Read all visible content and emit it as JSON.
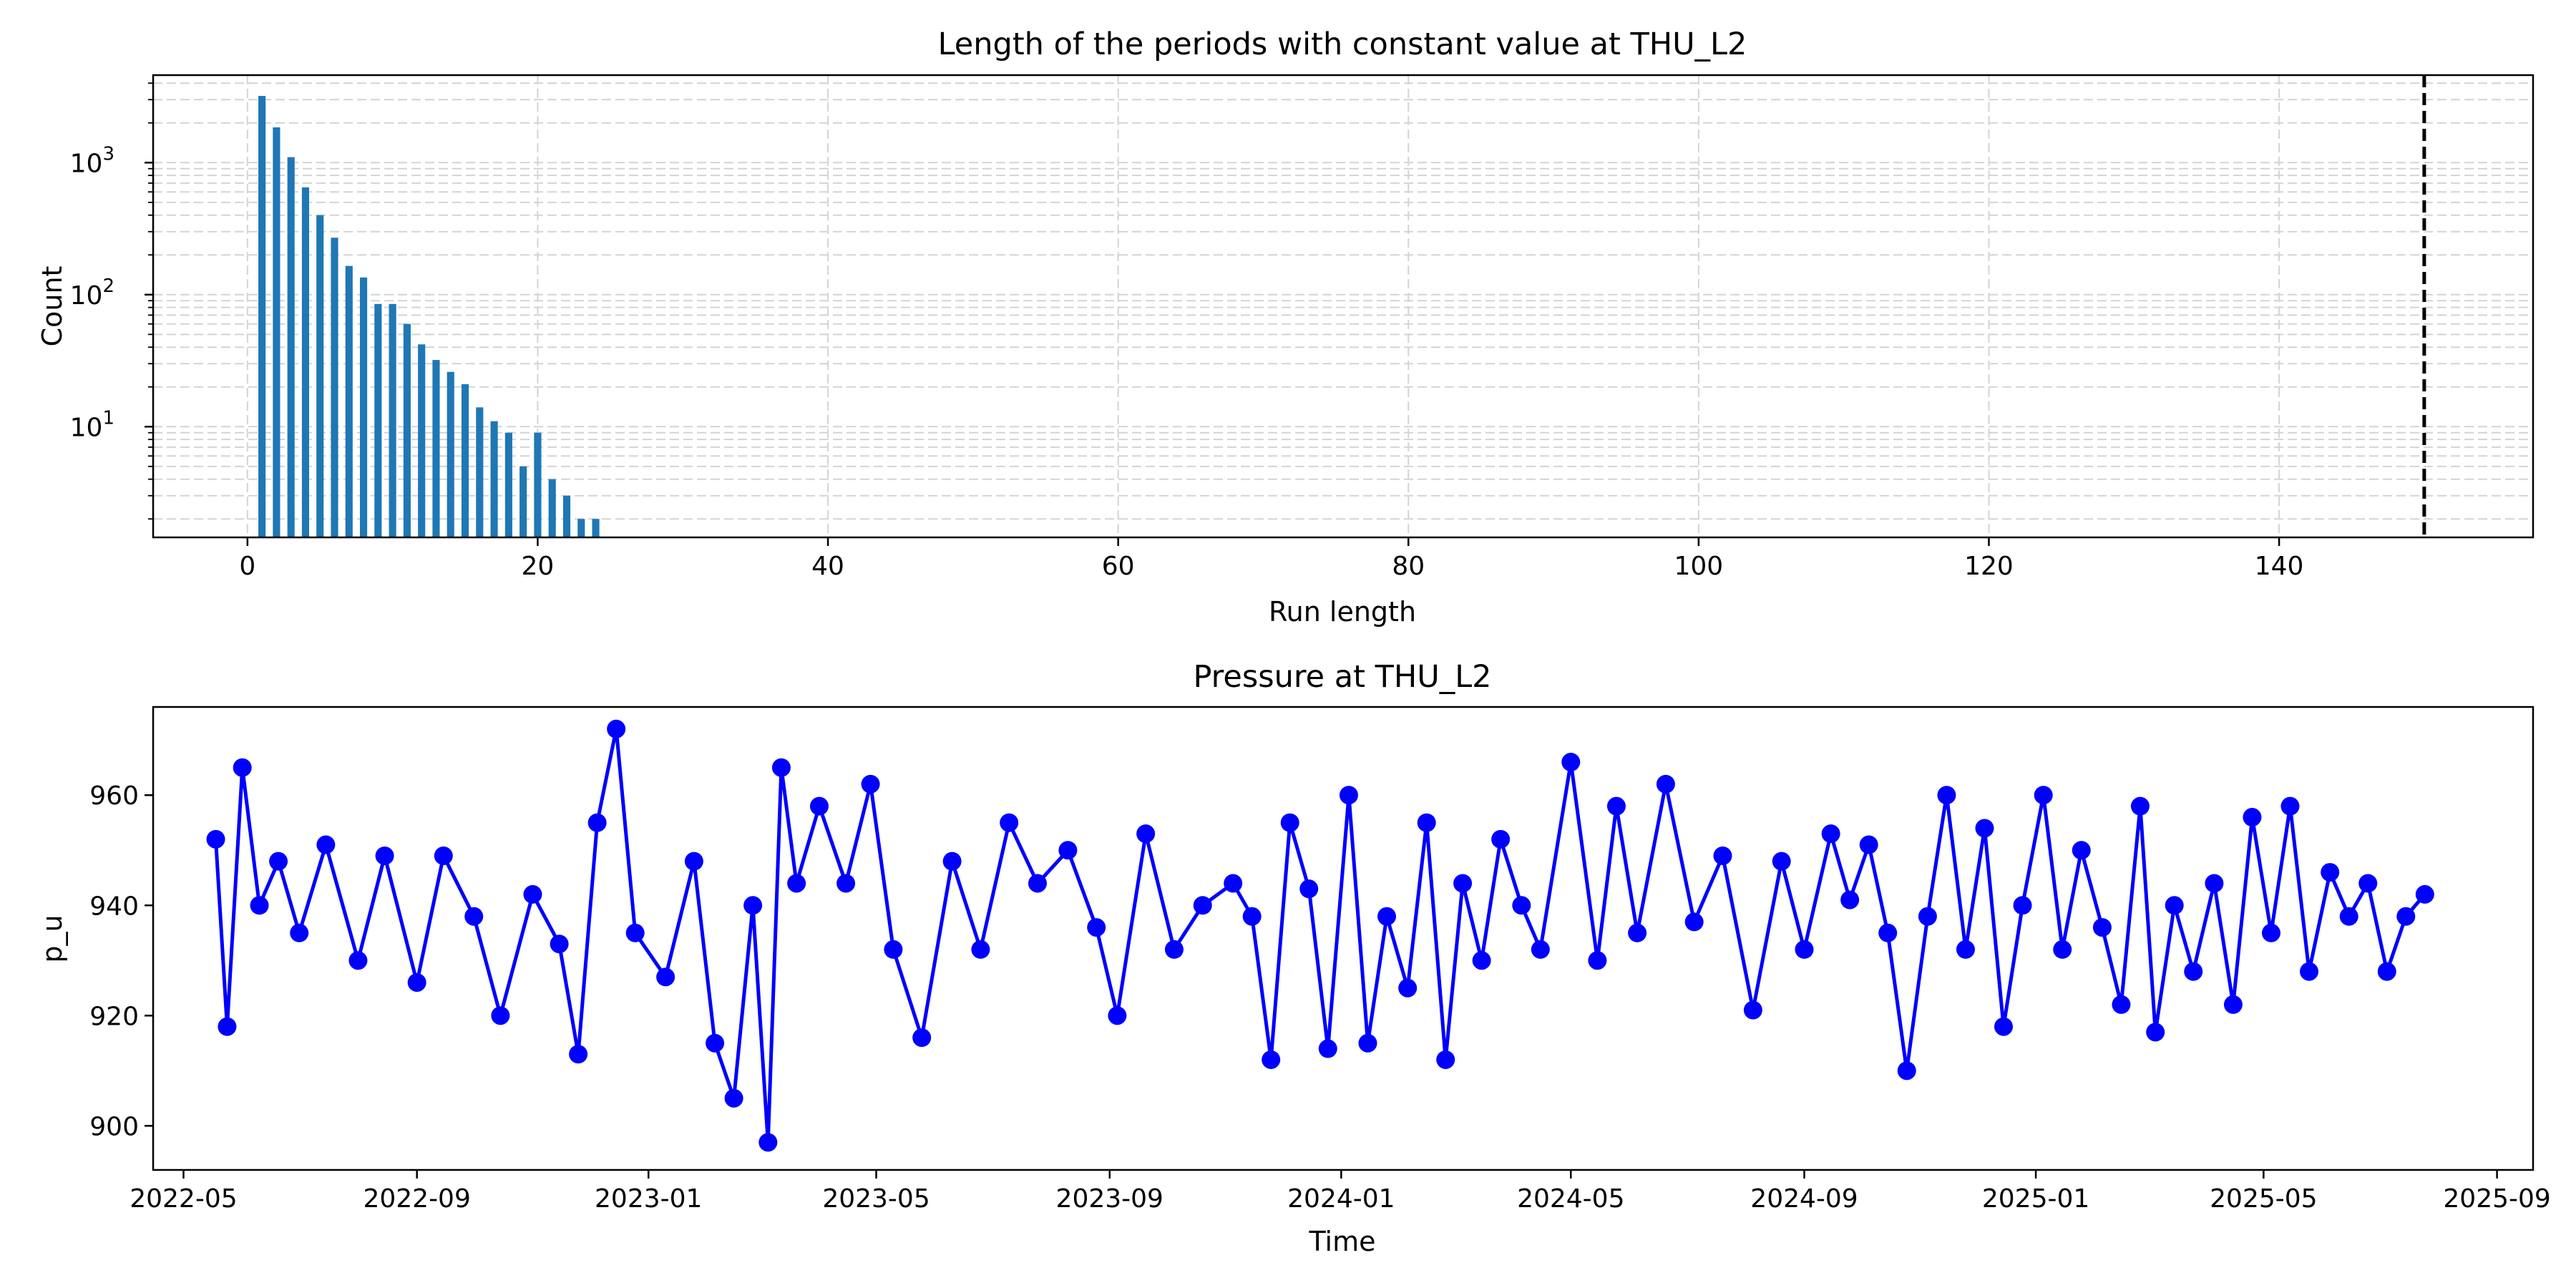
{
  "colors": {
    "bar": "#1f77b4",
    "pressure": "#0000ff",
    "threshold": "#000000",
    "grid": "#d4d4d4"
  },
  "chart_data": [
    {
      "type": "bar",
      "title": "Length of the periods with constant value at THU_L2",
      "xlabel": "Run length",
      "ylabel": "Count",
      "yscale": "log",
      "xlim": [
        -6.5,
        157.5
      ],
      "ylim": [
        1.45,
        4600
      ],
      "xticks": [
        0,
        20,
        40,
        60,
        80,
        100,
        120,
        140
      ],
      "xtick_labels": [
        "0",
        "20",
        "40",
        "60",
        "80",
        "100",
        "120",
        "140"
      ],
      "yticks": [
        {
          "value": 10,
          "base": "10",
          "exp": "1"
        },
        {
          "value": 100,
          "base": "10",
          "exp": "2"
        },
        {
          "value": 1000,
          "base": "10",
          "exp": "3"
        }
      ],
      "threshold_line": 150,
      "x": [
        1,
        2,
        3,
        4,
        5,
        6,
        7,
        8,
        9,
        10,
        11,
        12,
        13,
        14,
        15,
        16,
        17,
        18,
        19,
        20,
        21,
        22,
        23,
        24
      ],
      "values": [
        3200,
        1850,
        1100,
        650,
        400,
        270,
        165,
        135,
        85,
        85,
        60,
        42,
        32,
        26,
        21,
        14,
        11,
        9,
        5,
        9,
        4,
        3,
        2,
        2
      ]
    },
    {
      "type": "line",
      "title": "Pressure at THU_L2",
      "xlabel": "Time",
      "ylabel": "p_u",
      "xlim": [
        "2022-04-15",
        "2025-09-20"
      ],
      "ylim": [
        892,
        976
      ],
      "yticks": [
        900,
        920,
        940,
        960
      ],
      "xticks": [
        "2022-05-01",
        "2022-09-01",
        "2023-01-01",
        "2023-05-01",
        "2023-09-01",
        "2024-01-01",
        "2024-05-01",
        "2024-09-01",
        "2025-01-01",
        "2025-05-01",
        "2025-09-01"
      ],
      "xtick_labels": [
        "2022-05",
        "2022-09",
        "2023-01",
        "2023-05",
        "2023-09",
        "2024-01",
        "2024-05",
        "2024-09",
        "2025-01",
        "2025-05",
        "2025-09"
      ],
      "series": [
        {
          "name": "p_u",
          "x": [
            "2022-05-18",
            "2022-05-24",
            "2022-06-01",
            "2022-06-10",
            "2022-06-20",
            "2022-07-01",
            "2022-07-15",
            "2022-08-01",
            "2022-08-15",
            "2022-09-01",
            "2022-09-15",
            "2022-10-01",
            "2022-10-15",
            "2022-11-01",
            "2022-11-15",
            "2022-11-25",
            "2022-12-05",
            "2022-12-15",
            "2022-12-25",
            "2023-01-10",
            "2023-01-25",
            "2023-02-05",
            "2023-02-15",
            "2023-02-25",
            "2023-03-05",
            "2023-03-12",
            "2023-03-20",
            "2023-04-01",
            "2023-04-15",
            "2023-04-28",
            "2023-05-10",
            "2023-05-25",
            "2023-06-10",
            "2023-06-25",
            "2023-07-10",
            "2023-07-25",
            "2023-08-10",
            "2023-08-25",
            "2023-09-05",
            "2023-09-20",
            "2023-10-05",
            "2023-10-20",
            "2023-11-05",
            "2023-11-15",
            "2023-11-25",
            "2023-12-05",
            "2023-12-15",
            "2023-12-25",
            "2024-01-05",
            "2024-01-15",
            "2024-01-25",
            "2024-02-05",
            "2024-02-15",
            "2024-02-25",
            "2024-03-05",
            "2024-03-15",
            "2024-03-25",
            "2024-04-05",
            "2024-04-15",
            "2024-05-01",
            "2024-05-15",
            "2024-05-25",
            "2024-06-05",
            "2024-06-20",
            "2024-07-05",
            "2024-07-20",
            "2024-08-05",
            "2024-08-20",
            "2024-09-01",
            "2024-09-15",
            "2024-09-25",
            "2024-10-05",
            "2024-10-15",
            "2024-10-25",
            "2024-11-05",
            "2024-11-15",
            "2024-11-25",
            "2024-12-05",
            "2024-12-15",
            "2024-12-25",
            "2025-01-05",
            "2025-01-15",
            "2025-01-25",
            "2025-02-05",
            "2025-02-15",
            "2025-02-25",
            "2025-03-05",
            "2025-03-15",
            "2025-03-25",
            "2025-04-05",
            "2025-04-15",
            "2025-04-25",
            "2025-05-05",
            "2025-05-15",
            "2025-05-25",
            "2025-06-05",
            "2025-06-15",
            "2025-06-25",
            "2025-07-05",
            "2025-07-15",
            "2025-07-25"
          ],
          "y": [
            952,
            918,
            965,
            940,
            948,
            935,
            951,
            930,
            949,
            926,
            949,
            938,
            920,
            942,
            933,
            913,
            955,
            972,
            935,
            927,
            948,
            915,
            905,
            940,
            897,
            965,
            944,
            958,
            944,
            962,
            932,
            916,
            948,
            932,
            955,
            944,
            950,
            936,
            920,
            953,
            932,
            940,
            944,
            938,
            912,
            955,
            943,
            914,
            960,
            915,
            938,
            925,
            955,
            912,
            944,
            930,
            952,
            940,
            932,
            966,
            930,
            958,
            935,
            962,
            937,
            949,
            921,
            948,
            932,
            953,
            941,
            951,
            935,
            910,
            938,
            960,
            932,
            954,
            918,
            940,
            960,
            932,
            950,
            936,
            922,
            958,
            917,
            940,
            928,
            944,
            922,
            956,
            935,
            958,
            928,
            946,
            938,
            944,
            928,
            938,
            942
          ]
        }
      ]
    }
  ]
}
